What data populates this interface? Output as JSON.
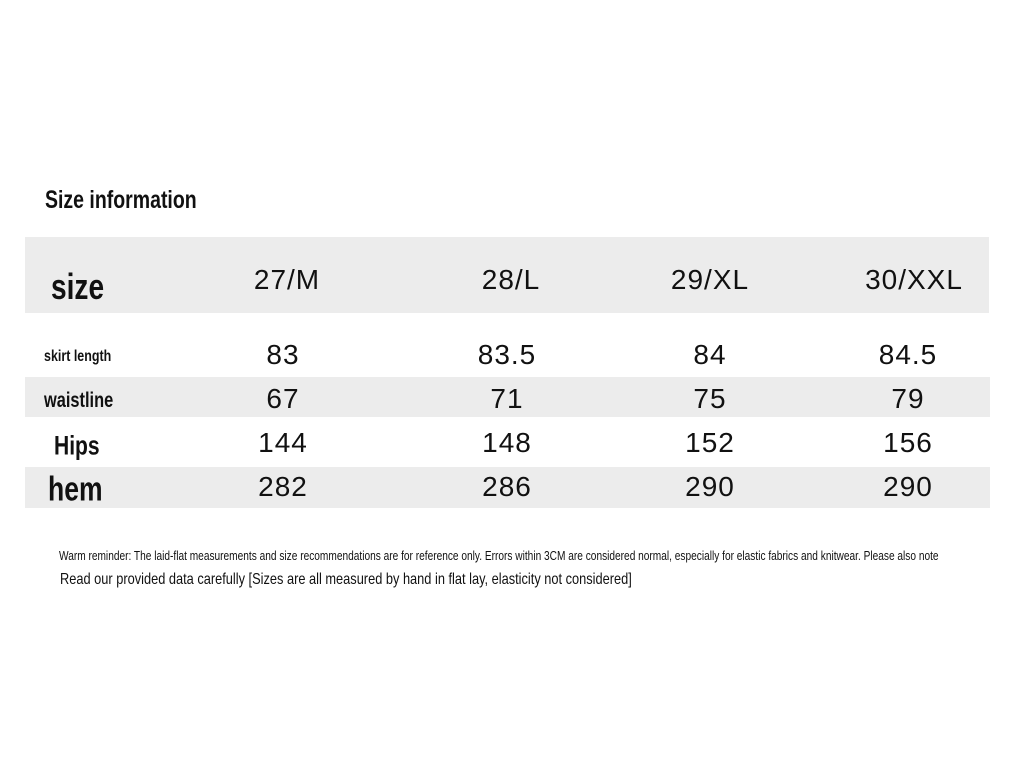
{
  "title": "Size information",
  "table": {
    "header": [
      "size",
      "27/M",
      "28/L",
      "29/XL",
      "30/XXL"
    ],
    "rows": [
      [
        "skirt length",
        83,
        83.5,
        84,
        84.5
      ],
      [
        "waistline",
        67,
        71,
        75,
        79
      ],
      [
        "Hips",
        144,
        148,
        152,
        156
      ],
      [
        "hem",
        282,
        286,
        290,
        290
      ]
    ]
  },
  "notes": [
    "Warm reminder: The laid-flat measurements and size recommendations are for reference only. Errors within 3CM are considered normal, especially for elastic fabrics and knitwear. Please also note",
    "Read our provided data carefully [Sizes are all measured by hand in flat lay, elasticity not considered]"
  ]
}
